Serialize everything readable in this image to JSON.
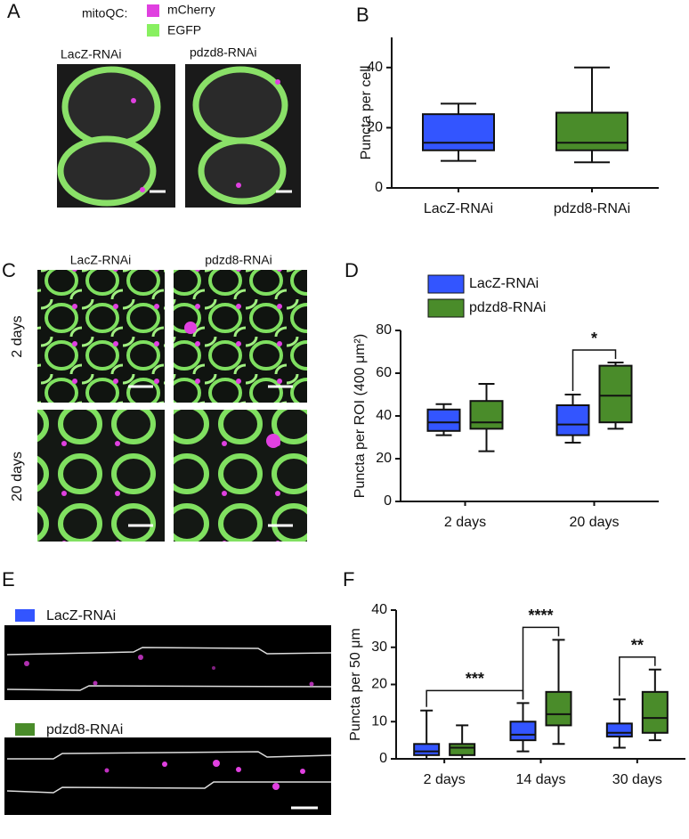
{
  "panels": [
    "A",
    "B",
    "C",
    "D",
    "E",
    "F"
  ],
  "panel_a": {
    "legend_title": "mitoQC:",
    "legend": [
      "mCherry",
      "EGFP"
    ],
    "legend_colors": [
      "#e040e0",
      "#88f060"
    ],
    "images": [
      "LacZ-RNAi",
      "pdzd8-RNAi"
    ]
  },
  "panel_c": {
    "columns": [
      "LacZ-RNAi",
      "pdzd8-RNAi"
    ],
    "rows": [
      "2 days",
      "20 days"
    ]
  },
  "chart_data": [
    {
      "type": "box",
      "ylabel": "Puncta per cell",
      "categories": [
        "LacZ-RNAi",
        "pdzd8-RNAi"
      ],
      "colors": [
        "#3355ff",
        "#4a8c2a"
      ],
      "boxes": [
        {
          "min": 9,
          "q1": 12.5,
          "median": 15,
          "q3": 24.5,
          "max": 28
        },
        {
          "min": 8.5,
          "q1": 12.5,
          "median": 15,
          "q3": 25,
          "max": 40
        }
      ],
      "ylim": [
        0,
        50
      ],
      "yticks": [
        0,
        20,
        40
      ]
    },
    {
      "type": "box",
      "ylabel": "Puncta per ROI (400 μm²)",
      "categories": [
        "2 days",
        "20 days"
      ],
      "legend": "top",
      "series": [
        {
          "name": "LacZ-RNAi",
          "color": "#3355ff",
          "boxes": [
            {
              "min": 31,
              "q1": 33,
              "median": 37,
              "q3": 43,
              "max": 45.5
            },
            {
              "min": 27.5,
              "q1": 31,
              "median": 36,
              "q3": 45,
              "max": 50
            }
          ]
        },
        {
          "name": "pdzd8-RNAi",
          "color": "#4a8c2a",
          "boxes": [
            {
              "min": 23.5,
              "q1": 34,
              "median": 37,
              "q3": 47,
              "max": 55
            },
            {
              "min": 34,
              "q1": 37,
              "median": 49.5,
              "q3": 63.5,
              "max": 65
            }
          ]
        }
      ],
      "annotations": [
        {
          "text": "*",
          "from": [
            0,
            1
          ],
          "to": [
            1,
            1
          ]
        }
      ],
      "ylim": [
        0,
        80
      ],
      "yticks": [
        0,
        20,
        40,
        60,
        80
      ]
    },
    {
      "type": "box",
      "ylabel": "Puncta per 50 μm",
      "categories": [
        "2 days",
        "14 days",
        "30 days"
      ],
      "series": [
        {
          "name": "LacZ-RNAi",
          "color": "#3355ff",
          "boxes": [
            {
              "min": 0,
              "q1": 1,
              "median": 2,
              "q3": 4,
              "max": 13
            },
            {
              "min": 2,
              "q1": 5,
              "median": 6.5,
              "q3": 10,
              "max": 15
            },
            {
              "min": 3,
              "q1": 6,
              "median": 7,
              "q3": 9.5,
              "max": 16
            }
          ]
        },
        {
          "name": "pdzd8-RNAi",
          "color": "#4a8c2a",
          "boxes": [
            {
              "min": 0,
              "q1": 1,
              "median": 3,
              "q3": 4,
              "max": 9
            },
            {
              "min": 4,
              "q1": 9,
              "median": 12,
              "q3": 18,
              "max": 32
            },
            {
              "min": 5,
              "q1": 7,
              "median": 11,
              "q3": 18,
              "max": 24
            }
          ]
        }
      ],
      "annotations": [
        {
          "text": "***",
          "from": [
            0,
            0
          ],
          "to": [
            0,
            1
          ]
        },
        {
          "text": "****",
          "from": [
            0,
            1
          ],
          "to": [
            1,
            1
          ]
        },
        {
          "text": "**",
          "from": [
            0,
            2
          ],
          "to": [
            1,
            2
          ]
        }
      ],
      "ylim": [
        0,
        40
      ],
      "yticks": [
        0,
        10,
        20,
        30,
        40
      ]
    }
  ]
}
